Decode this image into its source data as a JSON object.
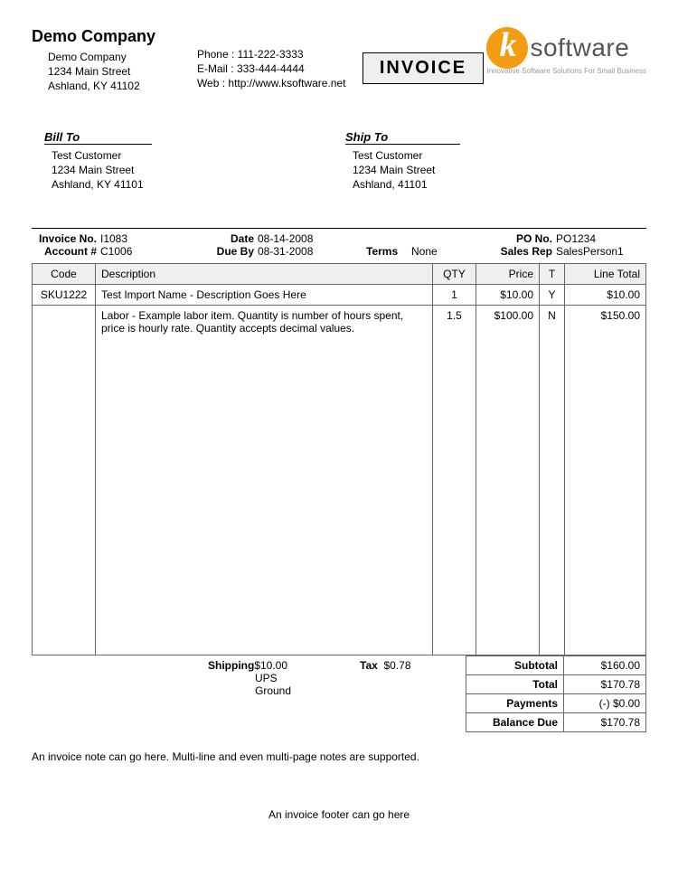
{
  "company": {
    "title": "Demo Company",
    "name": "Demo Company",
    "street": "1234 Main Street",
    "citystate": "Ashland, KY 41102"
  },
  "contact": {
    "phone_label": "Phone :",
    "phone": "111-222-3333",
    "email_label": "E-Mail :",
    "email": "333-444-4444",
    "web_label": "Web :",
    "web": "http://www.ksoftware.net"
  },
  "badge": "INVOICE",
  "logo": {
    "text": "software",
    "letter": "k",
    "tagline": "Innovative Software Solutions For Small Business",
    "orange": "#f39c12",
    "text_color": "#555555"
  },
  "billto": {
    "heading": "Bill To",
    "name": "Test Customer",
    "street": "1234 Main Street",
    "citystate": "Ashland, KY 41101"
  },
  "shipto": {
    "heading": "Ship To",
    "name": "Test Customer",
    "street": "1234 Main Street",
    "citystate": "Ashland,  41101"
  },
  "meta": {
    "invoice_no_label": "Invoice No.",
    "invoice_no": "I1083",
    "account_label": "Account #",
    "account": "C1006",
    "date_label": "Date",
    "date": "08-14-2008",
    "dueby_label": "Due By",
    "dueby": "08-31-2008",
    "terms_label": "Terms",
    "terms": "None",
    "po_label": "PO No.",
    "po": "PO1234",
    "salesrep_label": "Sales Rep",
    "salesrep": "SalesPerson1"
  },
  "table": {
    "headers": {
      "code": "Code",
      "desc": "Description",
      "qty": "QTY",
      "price": "Price",
      "t": "T",
      "total": "Line Total"
    },
    "rows": [
      {
        "code": "SKU1222",
        "desc": "Test Import Name - Description Goes Here",
        "qty": "1",
        "price": "$10.00",
        "t": "Y",
        "total": "$10.00"
      },
      {
        "code": "",
        "desc": "Labor - Example labor item. Quantity is number of hours spent, price is hourly rate. Quantity accepts decimal values.",
        "qty": "1.5",
        "price": "$100.00",
        "t": "N",
        "total": "$150.00"
      }
    ]
  },
  "shipping": {
    "label": "Shipping",
    "amount": "$10.00",
    "method": "UPS Ground",
    "tax_label": "Tax",
    "tax": "$0.78"
  },
  "totals": {
    "subtotal_label": "Subtotal",
    "subtotal": "$160.00",
    "total_label": "Total",
    "total": "$170.78",
    "payments_label": "Payments",
    "payments": "(-) $0.00",
    "balance_label": "Balance Due",
    "balance": "$170.78"
  },
  "note": "An invoice note can go here. Multi-line and even multi-page notes are supported.",
  "footer": "An invoice footer can go here"
}
